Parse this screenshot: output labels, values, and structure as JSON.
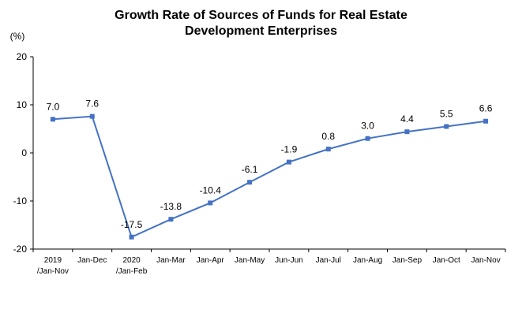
{
  "chart_data": {
    "type": "line",
    "title_lines": [
      "Growth Rate of Sources of Funds for Real Estate",
      "Development Enterprises"
    ],
    "unit_label": "(%)",
    "categories": [
      [
        "2019",
        "/Jan-Nov"
      ],
      [
        "Jan-Dec"
      ],
      [
        "2020",
        "/Jan-Feb"
      ],
      [
        "Jan-Mar"
      ],
      [
        "Jan-Apr"
      ],
      [
        "Jan-May"
      ],
      [
        "Jun-Jun"
      ],
      [
        "Jan-Jul"
      ],
      [
        "Jan-Aug"
      ],
      [
        "Jan-Sep"
      ],
      [
        "Jan-Oct"
      ],
      [
        "Jan-Nov"
      ]
    ],
    "series": [
      {
        "values": [
          7.0,
          7.6,
          -17.5,
          -13.8,
          -10.4,
          -6.1,
          -1.9,
          0.8,
          3.0,
          4.4,
          5.5,
          6.6
        ],
        "labels": [
          "7.0",
          "7.6",
          "-17.5",
          "-13.8",
          "-10.4",
          "-6.1",
          "-1.9",
          "0.8",
          "3.0",
          "4.4",
          "5.5",
          "6.6"
        ]
      }
    ],
    "ylim": [
      -20,
      20
    ],
    "yticks": [
      "20",
      "10",
      "0",
      "-10",
      "-20"
    ],
    "ytick_values": [
      20,
      10,
      0,
      -10,
      -20
    ],
    "line_color": "#4472C4",
    "marker_color": "#4472C4",
    "grid": false,
    "legend": "none"
  }
}
